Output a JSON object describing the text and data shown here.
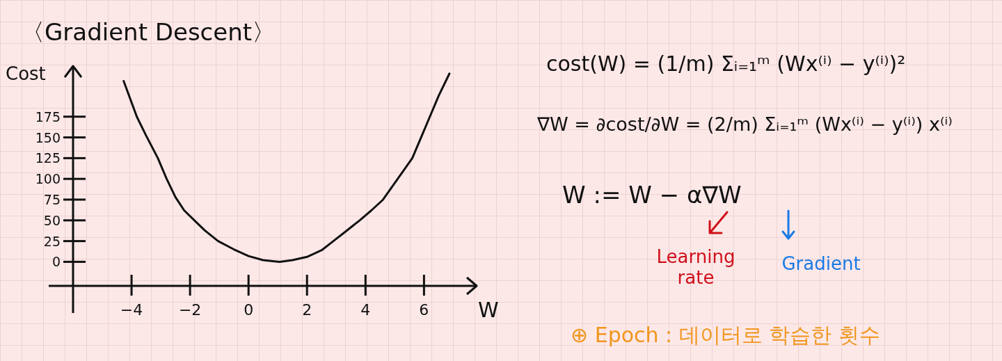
{
  "chart_data": {
    "type": "line",
    "title": "〈Gradient Descent〉",
    "xlabel": "W",
    "ylabel": "Cost",
    "x": [
      -4.27,
      -3.82,
      -3.5,
      -3.1,
      -2.8,
      -2.5,
      -2.2,
      -1.85,
      -1.5,
      -1.04,
      -0.5,
      0,
      0.5,
      1.06,
      1.5,
      2,
      2.5,
      2.9,
      3.3,
      3.8,
      4.2,
      4.6,
      5.1,
      5.6,
      5.9,
      6.2,
      6.5,
      6.87
    ],
    "series": [
      {
        "color": "#111111",
        "values": [
          218,
          175,
          152,
          125,
          100,
          78,
          62,
          50,
          38,
          25,
          15,
          7,
          2,
          0,
          2,
          6,
          14,
          25,
          36,
          50,
          62,
          75,
          100,
          125,
          150,
          175,
          200,
          227
        ]
      }
    ],
    "xlim": [
      -6,
      7.8
    ],
    "ylim": [
      -29,
      236
    ],
    "xticks": [
      -4,
      -2,
      0,
      2,
      4,
      6
    ],
    "yticks": [
      0,
      25,
      50,
      75,
      100,
      125,
      150,
      175
    ],
    "grid": false,
    "marker": "none",
    "line_style": "solid",
    "annotations": [
      "cost(W) = (1/m) Σᵢ₌₁ᵐ (Wx⁽ⁱ⁾ − y⁽ⁱ⁾)²",
      "∇W = ∂cost/∂W = (2/m) Σᵢ₌₁ᵐ (Wx⁽ⁱ⁾ − y⁽ⁱ⁾) x⁽ⁱ⁾",
      "W := W − α∇W",
      "Learning\nrate",
      "Gradient",
      "⊕ Epoch : 데이터로 학습한 횟수"
    ]
  }
}
